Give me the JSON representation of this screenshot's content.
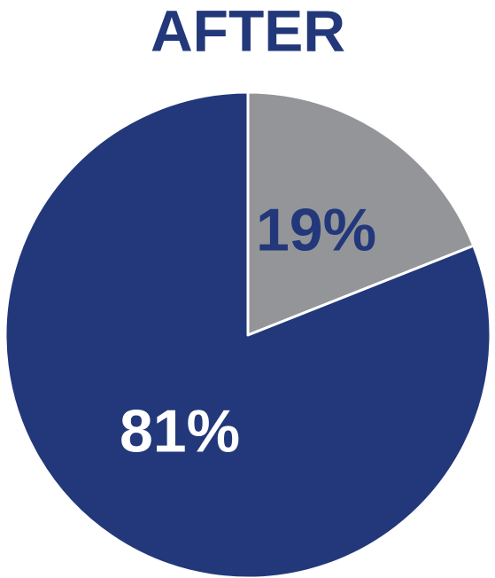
{
  "chart_data": {
    "type": "pie",
    "title": "AFTER",
    "categories": [
      null,
      null
    ],
    "values": [
      19,
      81
    ],
    "value_labels": [
      "19%",
      "81%"
    ],
    "colors": [
      "#939598",
      "#22387a"
    ],
    "label_colors": [
      "#22387a",
      "#ffffff"
    ]
  }
}
